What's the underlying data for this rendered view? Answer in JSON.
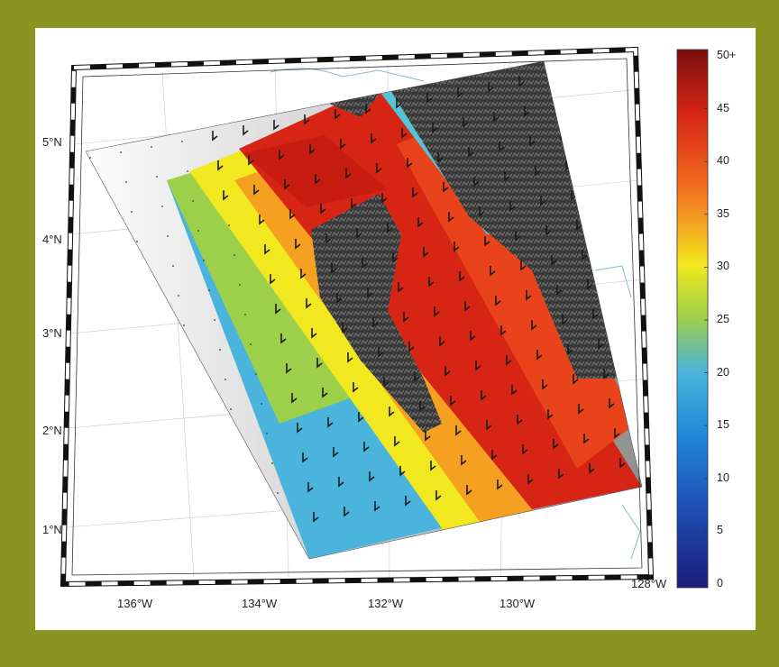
{
  "map": {
    "lat_labels": [
      "5°N",
      "4°N",
      "3°N",
      "2°N",
      "1°N"
    ],
    "lon_labels": [
      "136°W",
      "134°W",
      "132°W",
      "130°W",
      "128°W"
    ],
    "colorbar": {
      "ticks": [
        "50+",
        "45",
        "40",
        "35",
        "30",
        "25",
        "20",
        "15",
        "10",
        "5",
        "0"
      ],
      "min": 0,
      "max": 50
    },
    "colors": {
      "frame_background": "#8a9420",
      "panel": "#ffffff",
      "land": "#3a3a3a",
      "wind_high": "#d62514",
      "wind_mid": "#f2e81f",
      "wind_low": "#4ab4dd"
    },
    "wind_barb_symbol": "wind-barb"
  }
}
